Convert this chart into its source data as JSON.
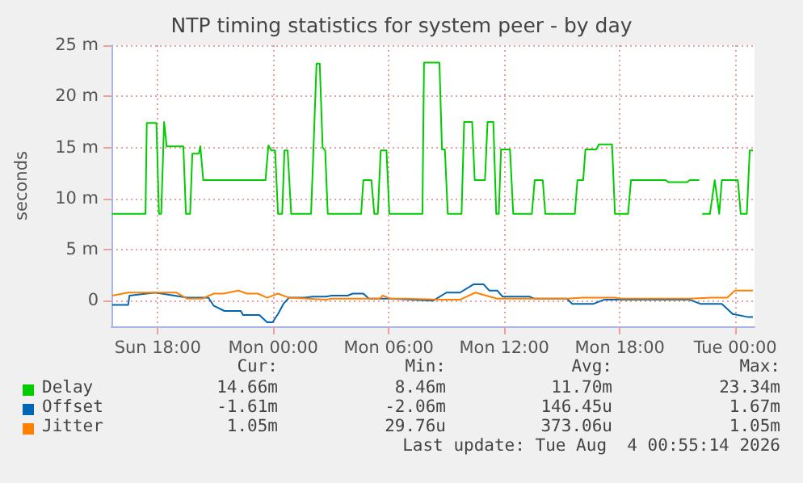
{
  "chart_data": {
    "type": "line",
    "title": "NTP timing statistics for system peer - by day",
    "ylabel": "seconds",
    "xlim": [
      "2026-08-02T15:36",
      "2026-08-04T01:00"
    ],
    "xticks": [
      {
        "value": "2026-08-02T18:00",
        "label": "Sun 18:00"
      },
      {
        "value": "2026-08-03T00:00",
        "label": "Mon 00:00"
      },
      {
        "value": "2026-08-03T06:00",
        "label": "Mon 06:00"
      },
      {
        "value": "2026-08-03T12:00",
        "label": "Mon 12:00"
      },
      {
        "value": "2026-08-03T18:00",
        "label": "Mon 18:00"
      },
      {
        "value": "2026-08-04T00:00",
        "label": "Tue 00:00"
      }
    ],
    "ylim": [
      -2.5,
      25
    ],
    "yticks": [
      0,
      {
        "value": 5,
        "label": "5 m"
      },
      {
        "value": 10,
        "label": "10 m"
      },
      {
        "value": 15,
        "label": "15 m"
      },
      {
        "value": 20,
        "label": "20 m"
      },
      {
        "value": 25,
        "label": "25 m"
      }
    ],
    "grid": true,
    "legend": "bottom",
    "marker": "none",
    "line_style": "solid",
    "series": [
      {
        "name": "Delay",
        "color": "#00cc00",
        "x": [
          "2026-08-02T15:38",
          "2026-08-02T17:22",
          "2026-08-02T17:26",
          "2026-08-02T17:56",
          "2026-08-02T18:04",
          "2026-08-02T18:11",
          "2026-08-02T18:20",
          "2026-08-02T18:28",
          "2026-08-02T19:20",
          "2026-08-02T19:28",
          "2026-08-02T19:41",
          "2026-08-02T19:48",
          "2026-08-02T20:08",
          "2026-08-02T20:13",
          "2026-08-02T20:22",
          "2026-08-02T23:36",
          "2026-08-02T23:45",
          "2026-08-02T23:54",
          "2026-08-03T00:06",
          "2026-08-03T00:15",
          "2026-08-03T00:28",
          "2026-08-03T00:35",
          "2026-08-03T00:45",
          "2026-08-03T00:56",
          "2026-08-03T01:58",
          "2026-08-03T02:05",
          "2026-08-03T02:15",
          "2026-08-03T02:25",
          "2026-08-03T02:34",
          "2026-08-03T02:42",
          "2026-08-03T02:50",
          "2026-08-03T04:34",
          "2026-08-03T04:41",
          "2026-08-03T05:06",
          "2026-08-03T05:15",
          "2026-08-03T05:26",
          "2026-08-03T05:35",
          "2026-08-03T05:53",
          "2026-08-03T06:02",
          "2026-08-03T07:45",
          "2026-08-03T07:50",
          "2026-08-03T08:38",
          "2026-08-03T08:46",
          "2026-08-03T08:55",
          "2026-08-03T09:04",
          "2026-08-03T09:47",
          "2026-08-03T09:55",
          "2026-08-03T10:20",
          "2026-08-03T10:28",
          "2026-08-03T11:00",
          "2026-08-03T11:08",
          "2026-08-03T11:26",
          "2026-08-03T11:35",
          "2026-08-03T11:43",
          "2026-08-03T11:50",
          "2026-08-03T12:00",
          "2026-08-03T12:18",
          "2026-08-03T12:28",
          "2026-08-03T13:26",
          "2026-08-03T13:35",
          "2026-08-03T14:00",
          "2026-08-03T14:08",
          "2026-08-03T15:40",
          "2026-08-03T15:48",
          "2026-08-03T16:06",
          "2026-08-03T16:13",
          "2026-08-03T16:47",
          "2026-08-03T16:55",
          "2026-08-03T17:36",
          "2026-08-03T17:45",
          "2026-08-03T18:26",
          "2026-08-03T18:35",
          "2026-08-03T20:23",
          "2026-08-03T20:32",
          "2026-08-03T21:30",
          "2026-08-03T21:38",
          "2026-08-03T22:08",
          "2026-08-03T22:12",
          "2026-08-03T22:17",
          "2026-08-03T22:41",
          "2026-08-03T22:56",
          "2026-08-03T23:10",
          "2026-08-03T23:18",
          "2026-08-04T00:08",
          "2026-08-04T00:17",
          "2026-08-04T00:36",
          "2026-08-04T00:45",
          "2026-08-04T00:55"
        ],
        "values": [
          8.5,
          8.5,
          17.4,
          17.4,
          8.5,
          8.5,
          17.5,
          15.1,
          15.1,
          8.5,
          8.5,
          14.4,
          14.4,
          15.1,
          11.8,
          11.8,
          15.2,
          14.7,
          14.7,
          8.5,
          8.5,
          14.7,
          14.7,
          8.5,
          8.5,
          14.4,
          23.2,
          23.2,
          15,
          14.7,
          8.5,
          8.5,
          11.8,
          11.8,
          8.5,
          8.5,
          14.7,
          14.7,
          8.5,
          8.5,
          23.3,
          23.3,
          14.8,
          14.8,
          8.5,
          8.5,
          17.5,
          17.5,
          11.8,
          11.8,
          17.5,
          17.5,
          8.5,
          8.5,
          14.8,
          14.8,
          14.8,
          8.5,
          8.5,
          11.8,
          11.8,
          8.5,
          8.5,
          11.8,
          11.8,
          14.8,
          14.8,
          15.3,
          15.3,
          8.5,
          8.5,
          11.8,
          11.8,
          11.6,
          11.6,
          11.8,
          11.8,
          null,
          8.5,
          8.5,
          11.8,
          8.5,
          11.8,
          11.8,
          8.5,
          8.5,
          14.7,
          14.7
        ]
      },
      {
        "name": "Offset",
        "color": "#0066b3",
        "x": [
          "2026-08-02T15:38",
          "2026-08-02T16:28",
          "2026-08-02T16:32",
          "2026-08-02T17:52",
          "2026-08-02T19:32",
          "2026-08-02T20:38",
          "2026-08-02T20:55",
          "2026-08-02T21:28",
          "2026-08-02T22:19",
          "2026-08-02T22:26",
          "2026-08-02T23:17",
          "2026-08-02T23:41",
          "2026-08-02T23:58",
          "2026-08-03T00:15",
          "2026-08-03T00:32",
          "2026-08-03T00:49",
          "2026-08-03T01:38",
          "2026-08-03T02:04",
          "2026-08-03T02:45",
          "2026-08-03T03:02",
          "2026-08-03T03:52",
          "2026-08-03T04:08",
          "2026-08-03T04:41",
          "2026-08-03T04:58",
          "2026-08-03T06:05",
          "2026-08-03T08:18",
          "2026-08-03T09:00",
          "2026-08-03T09:42",
          "2026-08-03T10:24",
          "2026-08-03T10:56",
          "2026-08-03T11:13",
          "2026-08-03T11:38",
          "2026-08-03T11:55",
          "2026-08-03T13:18",
          "2026-08-03T13:35",
          "2026-08-03T15:15",
          "2026-08-03T15:32",
          "2026-08-03T16:38",
          "2026-08-03T17:11",
          "2026-08-03T21:38",
          "2026-08-03T22:11",
          "2026-08-03T23:18",
          "2026-08-03T23:52",
          "2026-08-04T00:41",
          "2026-08-04T00:55"
        ],
        "values": [
          -0.4,
          -0.4,
          0.5,
          0.8,
          0.3,
          0.3,
          -0.5,
          -1.0,
          -1.0,
          -1.4,
          -1.4,
          -2.1,
          -2.1,
          -1.3,
          -0.3,
          0.3,
          0.3,
          0.4,
          0.4,
          0.5,
          0.5,
          0.7,
          0.7,
          0.2,
          0.2,
          0,
          0.8,
          0.8,
          1.6,
          1.6,
          1.0,
          1.0,
          0.4,
          0.4,
          0.2,
          0.2,
          -0.3,
          -0.3,
          0.1,
          0.1,
          -0.3,
          -0.3,
          -1.3,
          -1.6,
          -1.6
        ]
      },
      {
        "name": "Jitter",
        "color": "#ff8000",
        "x": [
          "2026-08-02T15:38",
          "2026-08-02T16:28",
          "2026-08-02T17:30",
          "2026-08-02T18:58",
          "2026-08-02T19:32",
          "2026-08-02T20:18",
          "2026-08-02T20:55",
          "2026-08-02T21:25",
          "2026-08-02T22:12",
          "2026-08-02T22:38",
          "2026-08-02T23:12",
          "2026-08-02T23:41",
          "2026-08-03T00:15",
          "2026-08-03T00:49",
          "2026-08-03T02:45",
          "2026-08-03T03:02",
          "2026-08-03T05:32",
          "2026-08-03T05:41",
          "2026-08-03T06:07",
          "2026-08-03T06:55",
          "2026-08-03T08:52",
          "2026-08-03T09:42",
          "2026-08-03T10:30",
          "2026-08-03T11:38",
          "2026-08-03T12:12",
          "2026-08-03T15:15",
          "2026-08-03T16:05",
          "2026-08-03T17:45",
          "2026-08-03T18:02",
          "2026-08-03T21:38",
          "2026-08-03T22:45",
          "2026-08-03T23:35",
          "2026-08-03T23:59",
          "2026-08-04T00:55"
        ],
        "values": [
          0.5,
          0.8,
          0.8,
          0.8,
          0.2,
          0.2,
          0.7,
          0.7,
          1.0,
          0.7,
          0.7,
          0.3,
          0.7,
          0.3,
          0.1,
          0.2,
          0.2,
          0.5,
          0.2,
          0.2,
          0.1,
          0.1,
          0.8,
          0.2,
          0.2,
          0.2,
          0.3,
          0.3,
          0.2,
          0.2,
          0.3,
          0.3,
          1.0,
          1.0
        ]
      }
    ],
    "annotations": [
      "Cur:",
      "Min:",
      "Avg:",
      "Max:",
      "14.66m",
      "8.46m",
      "11.70m",
      "23.34m",
      "-1.61m",
      "-2.06m",
      "146.45u",
      "1.67m",
      "1.05m",
      "29.76u",
      "373.06u",
      "1.05m",
      "Last update: Tue Aug  4 00:55:14 2026"
    ]
  }
}
